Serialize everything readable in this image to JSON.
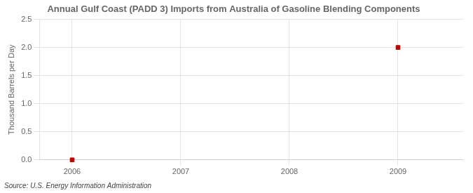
{
  "chart_data": {
    "type": "scatter",
    "title": "Annual Gulf Coast (PADD 3) Imports from Australia of Gasoline Blending Components",
    "ylabel": "Thousand Barrels per Day",
    "annotations": [
      "Source: U.S. Energy Information Administration"
    ],
    "x": [
      2006,
      2009
    ],
    "values": [
      0.0,
      2.0
    ],
    "color": "#bb0000",
    "marker": "square",
    "xlim": [
      2005.7,
      2009.6
    ],
    "ylim": [
      0.0,
      2.5
    ],
    "xticks": [
      2006,
      2007,
      2008,
      2009
    ],
    "yticks": [
      {
        "value": 0.0,
        "label": "0.0"
      },
      0.5,
      {
        "value": 1.0,
        "label": "1.0"
      },
      1.5,
      {
        "value": 2.0,
        "label": "2.0"
      },
      2.5
    ],
    "grid": true
  }
}
